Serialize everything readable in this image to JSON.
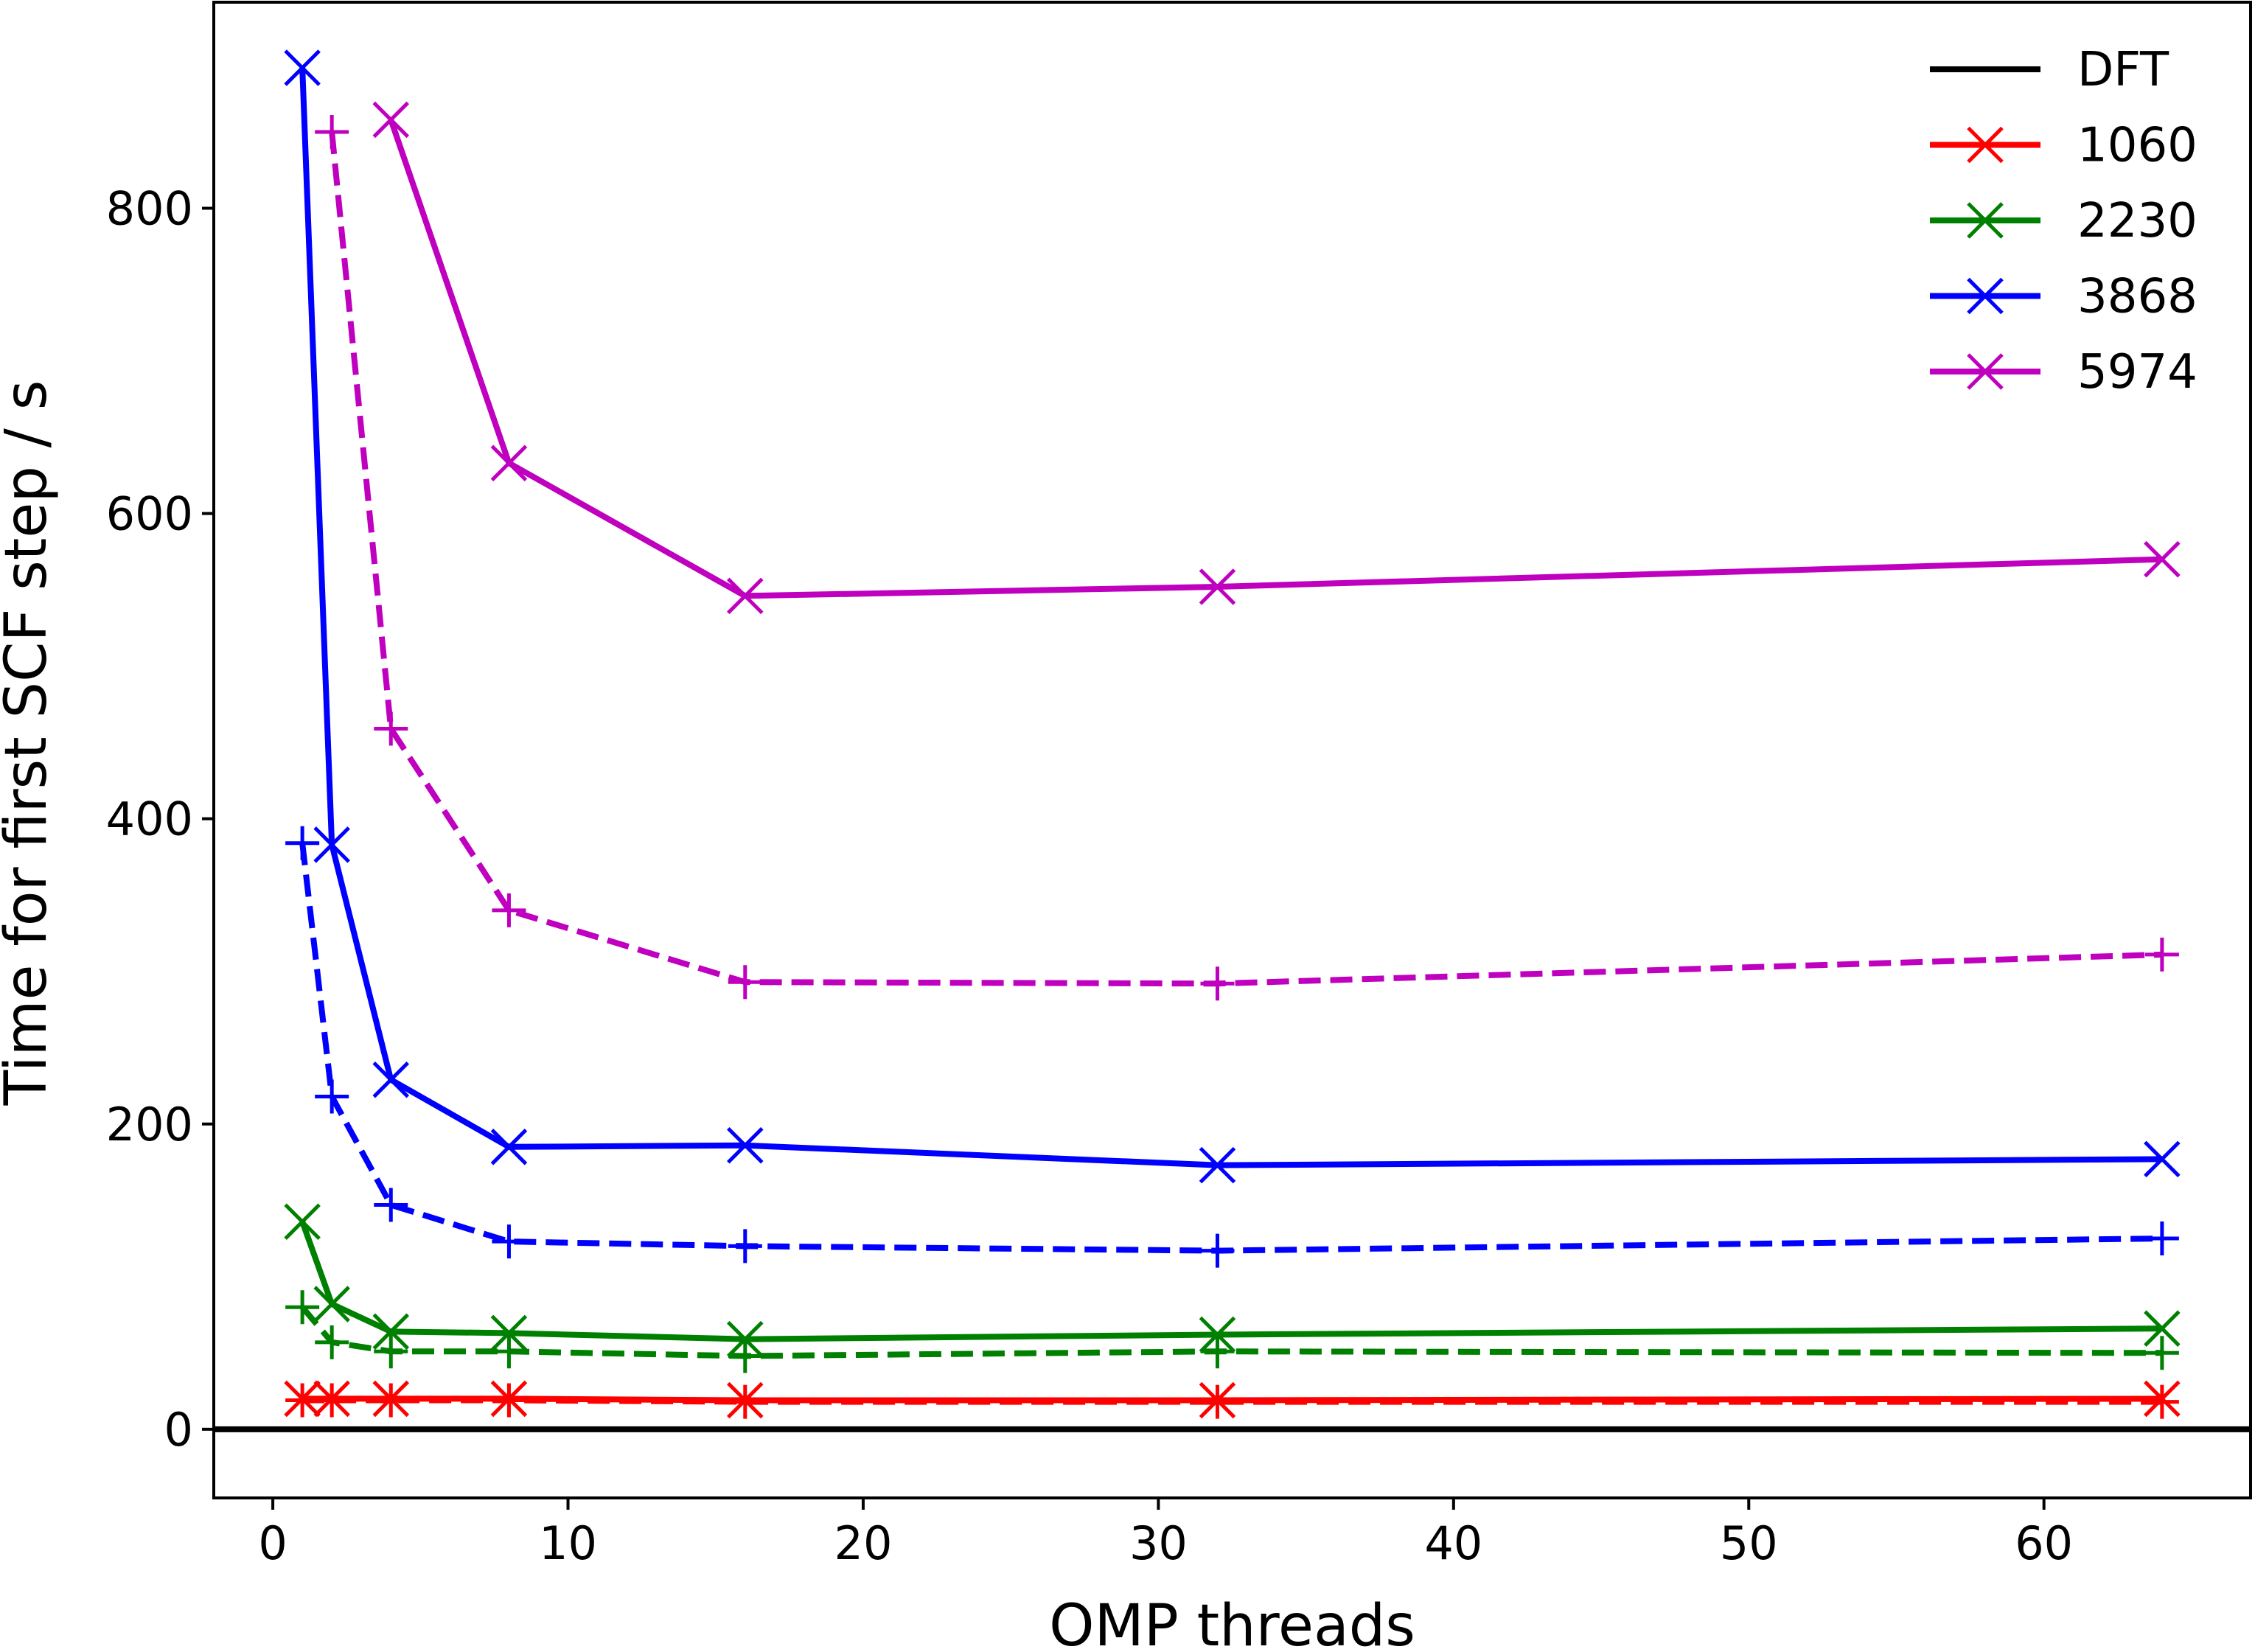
{
  "chart_data": {
    "type": "line",
    "xlabel": "OMP threads",
    "ylabel": "Time for first SCF step / s",
    "xlim": [
      -2,
      67
    ],
    "ylim": [
      -45,
      935
    ],
    "xticks": [
      0,
      10,
      20,
      30,
      40,
      50,
      60
    ],
    "yticks": [
      0,
      200,
      400,
      600,
      800
    ],
    "grid": false,
    "legend_placement": "top-right",
    "reference_line": {
      "name": "DFT",
      "y": 0,
      "color": "#000000"
    },
    "series": [
      {
        "name": "1060",
        "color": "#ff0000",
        "x_marker": {
          "x": [
            1,
            2,
            4,
            8,
            16,
            32,
            64
          ],
          "values": [
            20,
            20,
            20,
            20,
            19,
            19,
            20
          ]
        },
        "plus_marker": {
          "x": [
            1,
            2,
            4,
            8,
            16,
            32,
            64
          ],
          "values": [
            19,
            19,
            19,
            19,
            18,
            18,
            18
          ]
        }
      },
      {
        "name": "2230",
        "color": "#008000",
        "x_marker": {
          "x": [
            1,
            2,
            4,
            8,
            16,
            32,
            64
          ],
          "values": [
            136,
            82,
            64,
            63,
            59,
            62,
            66
          ]
        },
        "plus_marker": {
          "x": [
            1,
            2,
            4,
            8,
            16,
            32,
            64
          ],
          "values": [
            80,
            57,
            51,
            51,
            48,
            51,
            50
          ]
        }
      },
      {
        "name": "3868",
        "color": "#0000ff",
        "x_marker": {
          "x": [
            1,
            2,
            4,
            8,
            16,
            32,
            64
          ],
          "values": [
            892,
            383,
            229,
            185,
            186,
            173,
            177
          ]
        },
        "plus_marker": {
          "x": [
            1,
            2,
            4,
            8,
            16,
            32,
            64
          ],
          "values": [
            384,
            218,
            147,
            123,
            120,
            117,
            125
          ]
        }
      },
      {
        "name": "5974",
        "color": "#bf00bf",
        "x_marker": {
          "x": [
            4,
            8,
            16,
            32,
            64
          ],
          "values": [
            858,
            633,
            546,
            552,
            570
          ]
        },
        "plus_marker": {
          "x": [
            2,
            4,
            8,
            16,
            32,
            64
          ],
          "values": [
            850,
            459,
            340,
            293,
            292,
            311
          ]
        }
      }
    ]
  }
}
